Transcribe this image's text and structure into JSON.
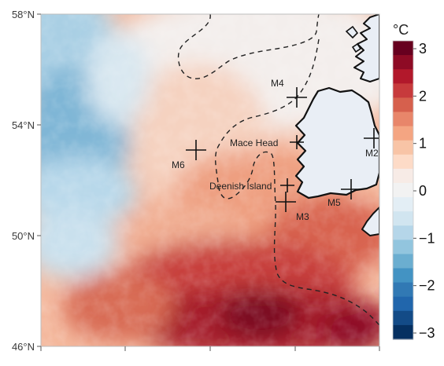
{
  "map": {
    "lat_ticks": [
      "58°N",
      "54°N",
      "50°N",
      "46°N"
    ],
    "stations": [
      {
        "id": "M4",
        "label": "M4"
      },
      {
        "id": "M6",
        "label": "M6"
      },
      {
        "id": "M2",
        "label": "M2"
      },
      {
        "id": "M3",
        "label": "M3"
      },
      {
        "id": "M5",
        "label": "M5"
      },
      {
        "id": "mace-head",
        "label": "Mace Head"
      },
      {
        "id": "deenish-island",
        "label": "Deenish Island"
      }
    ]
  },
  "colorbar": {
    "unit": "°C",
    "ticks": [
      "3",
      "2",
      "1",
      "0",
      "−1",
      "−2",
      "−3"
    ],
    "colors": [
      "#67001f",
      "#8e0b25",
      "#b2182b",
      "#c73a3c",
      "#d6604d",
      "#e8866a",
      "#f4a582",
      "#f8c4a6",
      "#fddbc7",
      "#f7ebe6",
      "#f2f2f2",
      "#e3eef5",
      "#d1e5f0",
      "#b5d6e9",
      "#92c5de",
      "#6baed0",
      "#4393c3",
      "#3179b4",
      "#2166ac",
      "#134b87",
      "#053061"
    ],
    "range": [
      -3,
      3
    ]
  },
  "accent_colors": {
    "land": "#e9eef5",
    "coast": "#111111",
    "contour": "#222222",
    "marker": "#111111"
  }
}
